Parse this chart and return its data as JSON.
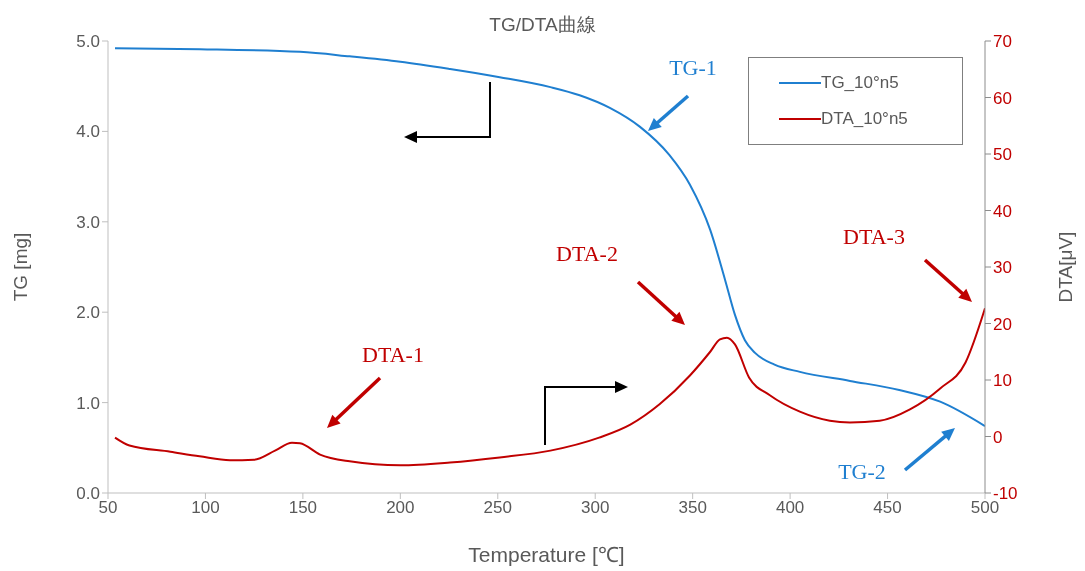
{
  "chart_data": {
    "type": "line",
    "title": "TG/DTA曲線",
    "xlabel": "Temperature [℃]",
    "ylabel": "TG [mg]",
    "y2label": "DTA[μV]",
    "xlim": [
      50,
      500
    ],
    "xticks": [
      50,
      100,
      150,
      200,
      250,
      300,
      350,
      400,
      450,
      500
    ],
    "ylim": [
      0,
      5
    ],
    "yticks": [
      {
        "value": 0,
        "label": "0.0"
      },
      {
        "value": 1,
        "label": "1.0"
      },
      {
        "value": 2,
        "label": "2.0"
      },
      {
        "value": 3,
        "label": "3.0"
      },
      {
        "value": 4,
        "label": "4.0"
      },
      {
        "value": 5,
        "label": "5.0"
      }
    ],
    "y2lim": [
      -10,
      70
    ],
    "y2ticks": [
      -10,
      0,
      10,
      20,
      30,
      40,
      50,
      60,
      70
    ],
    "grid": false,
    "legend": "top right",
    "marker": "none",
    "line_style": "solid",
    "series": [
      {
        "name": "TG_10°n5",
        "color": "#1f7fd0",
        "x": [
          53.6,
          97.2,
          148.5,
          174,
          200,
          225.5,
          251,
          277,
          292,
          307.5,
          323,
          338,
          348.6,
          359,
          366.6,
          371.7,
          376.8,
          382,
          392,
          405,
          430.7,
          456,
          477,
          500
        ],
        "values": [
          4.92,
          4.91,
          4.88,
          4.83,
          4.77,
          4.69,
          4.6,
          4.49,
          4.4,
          4.26,
          4.05,
          3.74,
          3.41,
          2.91,
          2.36,
          1.97,
          1.69,
          1.55,
          1.42,
          1.34,
          1.24,
          1.14,
          1.01,
          0.74
        ]
      },
      {
        "name": "DTA_10°n5",
        "color": "#c00000",
        "axis": "y2",
        "x": [
          53.6,
          61,
          82,
          97,
          112.6,
          125,
          135.7,
          144.4,
          148.5,
          158.8,
          174,
          200,
          225.5,
          251,
          277,
          302,
          318,
          333,
          348.6,
          359,
          364,
          367.6,
          371.7,
          379,
          389.6,
          405,
          420.4,
          430.7,
          446,
          461.5,
          477,
          490,
          500
        ],
        "values": [
          -0.2,
          -1.6,
          -2.7,
          -3.5,
          -4.2,
          -4.1,
          -2.5,
          -1.1,
          -1.2,
          -3.2,
          -4.4,
          -5.1,
          -4.6,
          -3.7,
          -2.5,
          -0.2,
          2.1,
          5.7,
          10.8,
          15,
          17.2,
          17.5,
          16.3,
          10.4,
          7.3,
          4.4,
          2.8,
          2.5,
          2.8,
          4.8,
          8.5,
          13.1,
          22.7
        ]
      }
    ],
    "annotations": [
      "TG-1",
      "TG-2",
      "DTA-1",
      "DTA-2",
      "DTA-3"
    ]
  }
}
